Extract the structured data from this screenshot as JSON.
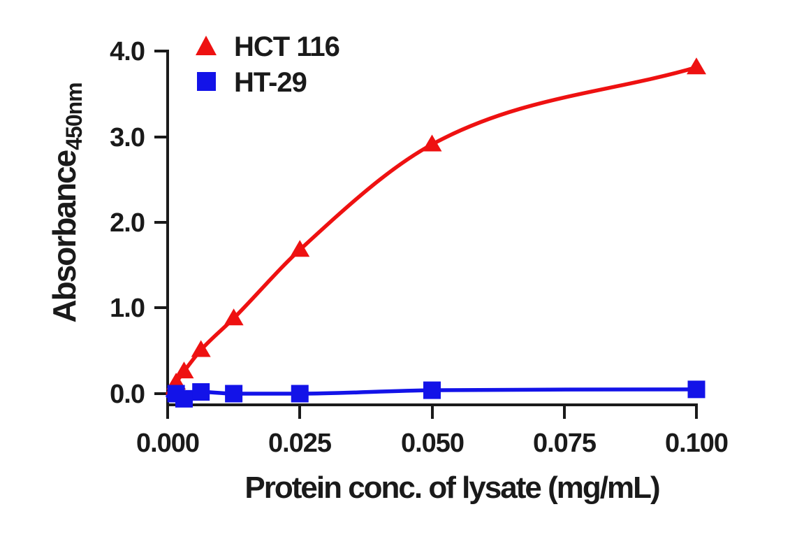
{
  "chart_data": {
    "type": "line",
    "title": "",
    "xlabel": "Protein conc. of lysate (mg/mL)",
    "ylabel": "Absorbance",
    "ylabel_subscript": "450nm",
    "xlim": [
      0,
      0.1
    ],
    "ylim": [
      0,
      4.0
    ],
    "grid": false,
    "legend_position": "top-left-inside",
    "xticks": {
      "values": [
        0,
        0.025,
        0.05,
        0.075,
        0.1
      ],
      "labels": [
        "0.000",
        "0.025",
        "0.050",
        "0.075",
        "0.100"
      ]
    },
    "yticks": {
      "values": [
        0,
        1,
        2,
        3,
        4
      ],
      "labels": [
        "0.0",
        "1.0",
        "2.0",
        "3.0",
        "4.0"
      ]
    },
    "axis_color": "#1a1a1a",
    "series": [
      {
        "name": "HCT 116",
        "color": "#ee1111",
        "marker": "triangle",
        "curve": "smooth-fit",
        "curve_start": {
          "x": 0,
          "y": 0.0
        },
        "x": [
          0.0016,
          0.0031,
          0.0063,
          0.0125,
          0.025,
          0.05,
          0.1
        ],
        "y": [
          0.13,
          0.26,
          0.51,
          0.88,
          1.68,
          2.91,
          3.81
        ]
      },
      {
        "name": "HT-29",
        "color": "#1313e8",
        "marker": "square",
        "curve": "smooth-fit",
        "curve_start": {
          "x": 0,
          "y": -0.03
        },
        "x": [
          0.0016,
          0.0031,
          0.0063,
          0.0125,
          0.025,
          0.05,
          0.1
        ],
        "y": [
          0.0,
          -0.06,
          0.02,
          0.0,
          0.0,
          0.04,
          0.05
        ]
      }
    ]
  }
}
